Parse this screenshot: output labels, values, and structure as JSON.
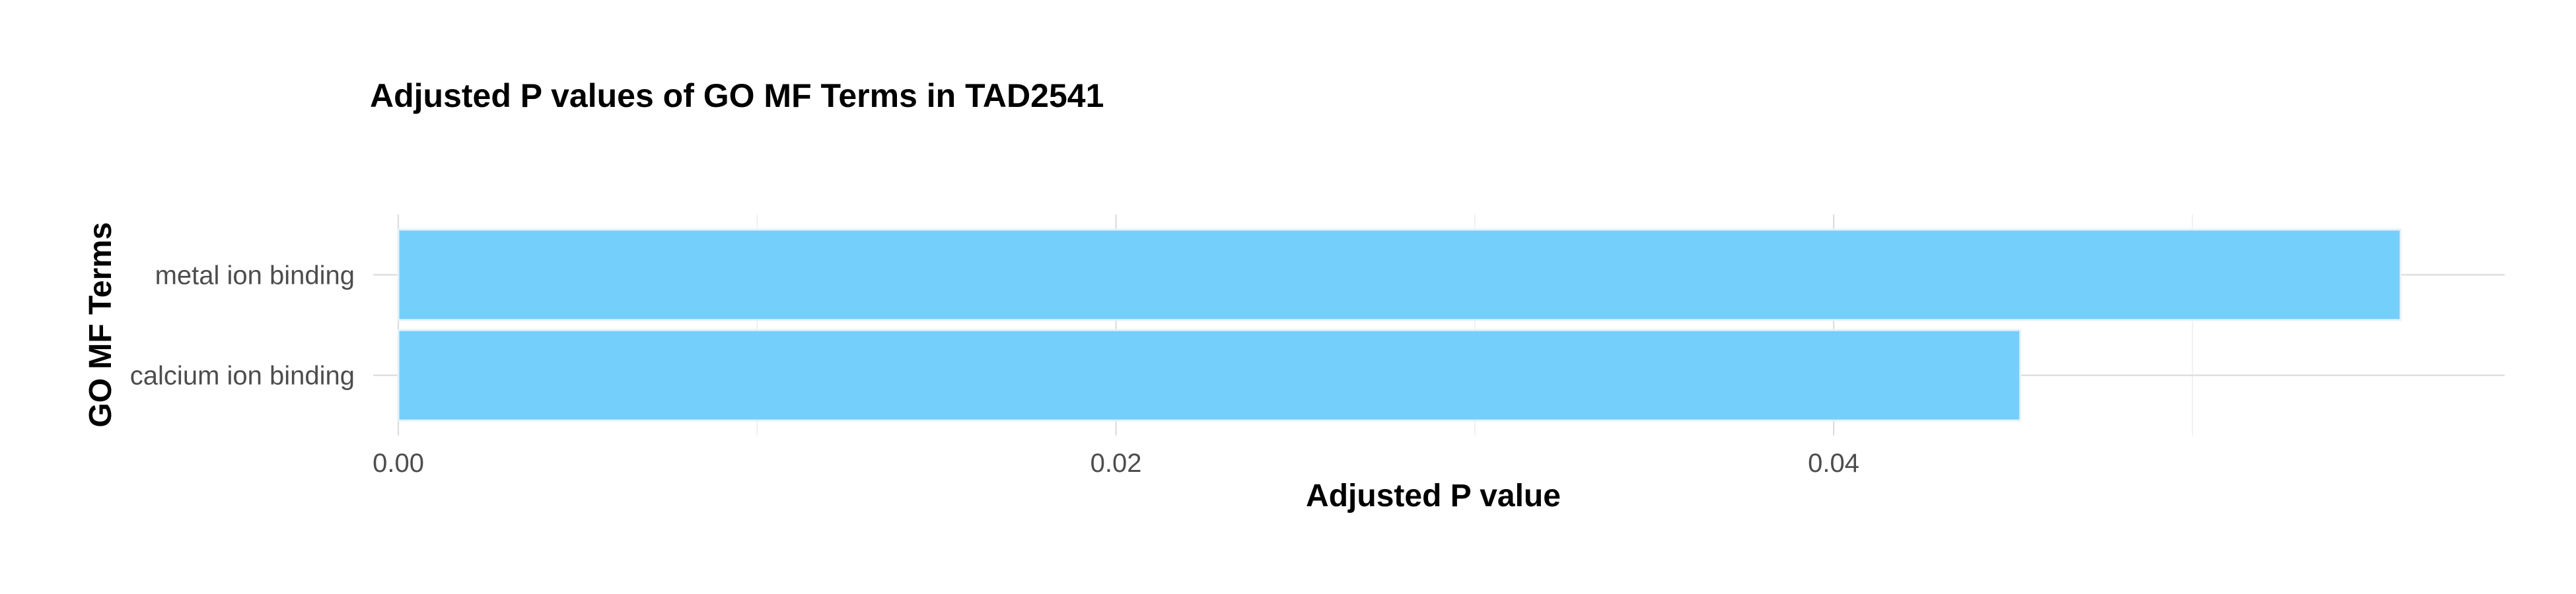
{
  "chart_data": {
    "type": "bar",
    "orientation": "horizontal",
    "title": "Adjusted P values of GO MF Terms in TAD2541",
    "xlabel": "Adjusted P value",
    "ylabel": "GO MF Terms",
    "categories": [
      "calcium ion binding",
      "metal ion binding"
    ],
    "values": [
      0.0452,
      0.0558
    ],
    "xlim": [
      -0.0007,
      0.0587
    ],
    "x_ticks": [
      0.0,
      0.02,
      0.04
    ],
    "x_tick_labels": [
      "0.00",
      "0.02",
      "0.04"
    ],
    "x_minor_ticks": [
      0.01,
      0.03,
      0.05
    ],
    "bar_color": "#75cffb",
    "grid": true,
    "legend": "none"
  }
}
